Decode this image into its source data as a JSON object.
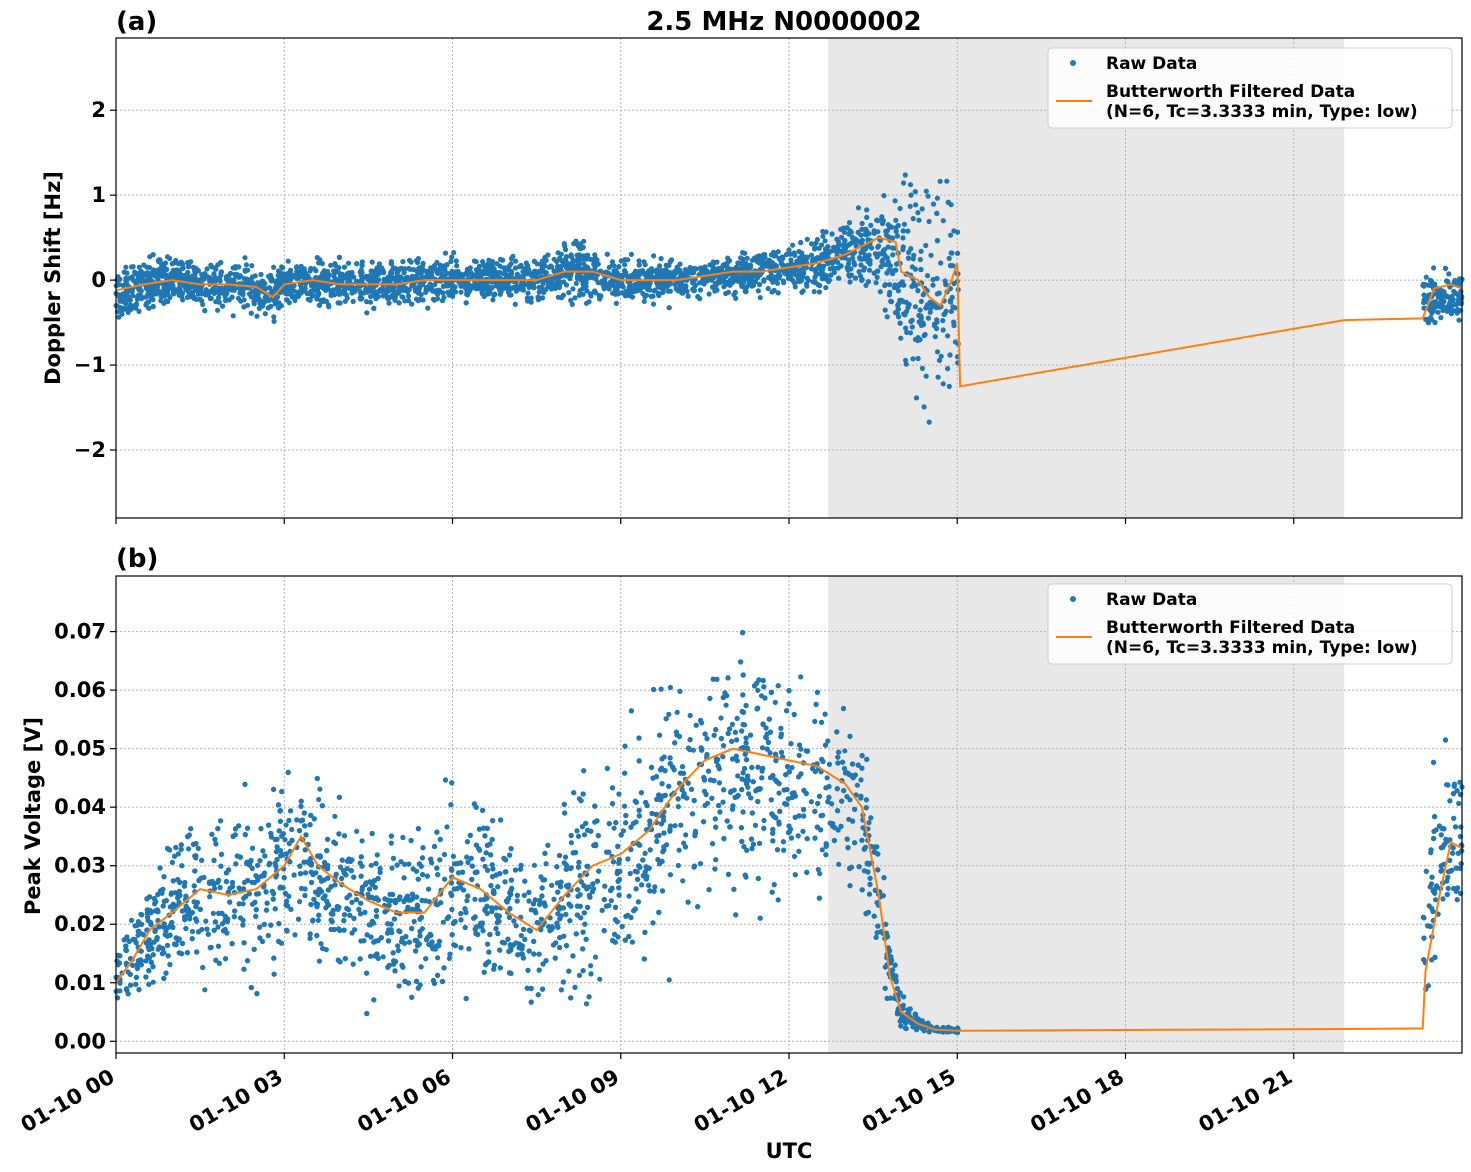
{
  "title": "2.5 MHz N0000002",
  "colors": {
    "raw": "#1f77b4",
    "filtered": "#ff7f0e",
    "shade": "#e8e8e8",
    "grid": "#b0b0b0"
  },
  "xlabel": "UTC",
  "x_ticks": [
    "01-10 00",
    "01-10 03",
    "01-10 06",
    "01-10 09",
    "01-10 12",
    "01-10 15",
    "01-10 18",
    "01-10 21"
  ],
  "legend": {
    "raw": "Raw Data",
    "filtered_line1": "Butterworth Filtered Data",
    "filtered_line2": "(N=6, Tc=3.3333 min, Type: low)"
  },
  "chart_data": [
    {
      "type": "scatter",
      "panel_label": "(a)",
      "title": "2.5 MHz N0000002",
      "xlabel": "",
      "ylabel": "Doppler Shift [Hz]",
      "x_unit": "hours UTC on 01-10",
      "xlim": [
        0,
        24
      ],
      "ylim": [
        -2.8,
        2.85
      ],
      "y_ticks": [
        -2,
        -1,
        0,
        1,
        2
      ],
      "y_tick_labels": [
        "−2",
        "−1",
        "0",
        "1",
        "2"
      ],
      "grid": true,
      "legend_position": "top-right",
      "shaded_interval": [
        12.7,
        21.9
      ],
      "series": [
        {
          "name": "Raw Data",
          "style": "points",
          "x": [
            0,
            0.5,
            1,
            1.5,
            2,
            2.5,
            2.8,
            3,
            3.5,
            4,
            4.5,
            5,
            5.5,
            5.8,
            6,
            6.5,
            7,
            7.5,
            8,
            8.5,
            9,
            9.5,
            10,
            10.5,
            11,
            11.5,
            12,
            12.5,
            13,
            13.3,
            13.6,
            13.9,
            14.1,
            14.3,
            14.5,
            14.7,
            14.9,
            15,
            23.3,
            23.6,
            24
          ],
          "center": [
            -0.15,
            -0.05,
            0.0,
            -0.05,
            -0.05,
            -0.1,
            -0.15,
            -0.05,
            -0.05,
            -0.05,
            -0.05,
            -0.05,
            0.0,
            0.0,
            0.0,
            0.0,
            0.0,
            0.0,
            0.1,
            0.1,
            0.0,
            0.0,
            0.0,
            0.05,
            0.05,
            0.1,
            0.15,
            0.2,
            0.3,
            0.35,
            0.4,
            0.2,
            0.0,
            -0.2,
            -0.3,
            -0.2,
            0.0,
            0.1,
            -0.2,
            -0.2,
            -0.2
          ],
          "spread": [
            0.3,
            0.28,
            0.25,
            0.25,
            0.25,
            0.25,
            0.3,
            0.25,
            0.25,
            0.25,
            0.25,
            0.25,
            0.25,
            0.25,
            0.22,
            0.22,
            0.22,
            0.25,
            0.3,
            0.28,
            0.22,
            0.22,
            0.2,
            0.2,
            0.2,
            0.22,
            0.25,
            0.3,
            0.35,
            0.4,
            0.5,
            0.8,
            1.1,
            1.2,
            1.3,
            1.3,
            1.2,
            1.0,
            0.3,
            0.3,
            0.3
          ]
        },
        {
          "name": "Butterworth Filtered Data",
          "style": "line",
          "x": [
            0,
            0.5,
            1,
            1.5,
            2,
            2.5,
            2.8,
            3,
            3.5,
            4,
            4.5,
            5,
            5.5,
            6,
            6.5,
            7,
            7.5,
            8,
            8.5,
            9,
            9.5,
            10,
            10.5,
            11,
            11.5,
            12,
            12.5,
            13,
            13.3,
            13.6,
            13.9,
            14.0,
            14.3,
            14.5,
            14.7,
            14.9,
            15,
            15.05,
            21.9,
            23.3,
            23.5,
            23.8,
            24
          ],
          "y": [
            -0.12,
            -0.05,
            0.0,
            -0.05,
            -0.05,
            -0.08,
            -0.2,
            -0.05,
            0.0,
            -0.05,
            -0.05,
            -0.05,
            0.0,
            0.0,
            0.0,
            0.0,
            0.0,
            0.1,
            0.1,
            0.0,
            0.0,
            0.0,
            0.05,
            0.1,
            0.1,
            0.15,
            0.2,
            0.3,
            0.4,
            0.5,
            0.45,
            0.1,
            0.0,
            -0.2,
            -0.3,
            0.0,
            0.2,
            -1.25,
            -0.47,
            -0.45,
            -0.1,
            -0.05,
            -0.1
          ]
        }
      ]
    },
    {
      "type": "scatter",
      "panel_label": "(b)",
      "title": "",
      "xlabel": "UTC",
      "ylabel": "Peak Voltage [V]",
      "x_unit": "hours UTC on 01-10",
      "xlim": [
        0,
        24
      ],
      "ylim": [
        -0.002,
        0.0795
      ],
      "y_ticks": [
        0.0,
        0.01,
        0.02,
        0.03,
        0.04,
        0.05,
        0.06,
        0.07
      ],
      "y_tick_labels": [
        "0.00",
        "0.01",
        "0.02",
        "0.03",
        "0.04",
        "0.05",
        "0.06",
        "0.07"
      ],
      "grid": true,
      "legend_position": "top-right",
      "shaded_interval": [
        12.7,
        21.9
      ],
      "series": [
        {
          "name": "Raw Data",
          "style": "points",
          "x": [
            0,
            0.5,
            1,
            1.5,
            2,
            2.5,
            3,
            3.5,
            4,
            4.5,
            5,
            5.5,
            6,
            6.5,
            7,
            7.5,
            8,
            8.5,
            9,
            9.5,
            10,
            10.5,
            11,
            11.5,
            12,
            12.5,
            13,
            13.3,
            13.6,
            13.8,
            14,
            14.3,
            14.6,
            15,
            23.3,
            23.5,
            23.8,
            24
          ],
          "center": [
            0.011,
            0.018,
            0.022,
            0.025,
            0.024,
            0.026,
            0.03,
            0.028,
            0.025,
            0.022,
            0.021,
            0.022,
            0.026,
            0.025,
            0.022,
            0.019,
            0.024,
            0.028,
            0.031,
            0.035,
            0.042,
            0.046,
            0.047,
            0.046,
            0.045,
            0.044,
            0.042,
            0.038,
            0.025,
            0.012,
            0.005,
            0.003,
            0.002,
            0.002,
            0.015,
            0.03,
            0.035,
            0.033
          ],
          "spread": [
            0.005,
            0.008,
            0.011,
            0.013,
            0.013,
            0.014,
            0.015,
            0.014,
            0.013,
            0.013,
            0.013,
            0.014,
            0.015,
            0.015,
            0.013,
            0.012,
            0.015,
            0.016,
            0.017,
            0.018,
            0.019,
            0.019,
            0.019,
            0.018,
            0.018,
            0.017,
            0.016,
            0.014,
            0.01,
            0.006,
            0.003,
            0.001,
            0.0005,
            0.0005,
            0.01,
            0.016,
            0.016,
            0.015
          ]
        },
        {
          "name": "Butterworth Filtered Data",
          "style": "line",
          "x": [
            0,
            0.3,
            0.6,
            1,
            1.5,
            2,
            2.5,
            3,
            3.3,
            3.6,
            4,
            4.5,
            5,
            5.5,
            6,
            6.5,
            7,
            7.5,
            8,
            8.5,
            9,
            9.5,
            10,
            10.5,
            11,
            11.5,
            12,
            12.5,
            13,
            13.3,
            13.6,
            13.8,
            14,
            14.3,
            14.6,
            15,
            21.9,
            23.3,
            23.35,
            23.6,
            23.8,
            24
          ],
          "y": [
            0.01,
            0.014,
            0.019,
            0.022,
            0.026,
            0.025,
            0.026,
            0.03,
            0.035,
            0.03,
            0.027,
            0.024,
            0.022,
            0.022,
            0.028,
            0.026,
            0.022,
            0.019,
            0.025,
            0.03,
            0.032,
            0.036,
            0.043,
            0.048,
            0.05,
            0.049,
            0.048,
            0.047,
            0.044,
            0.04,
            0.025,
            0.011,
            0.005,
            0.003,
            0.002,
            0.0018,
            0.0021,
            0.0022,
            0.012,
            0.025,
            0.034,
            0.033
          ]
        }
      ]
    }
  ]
}
